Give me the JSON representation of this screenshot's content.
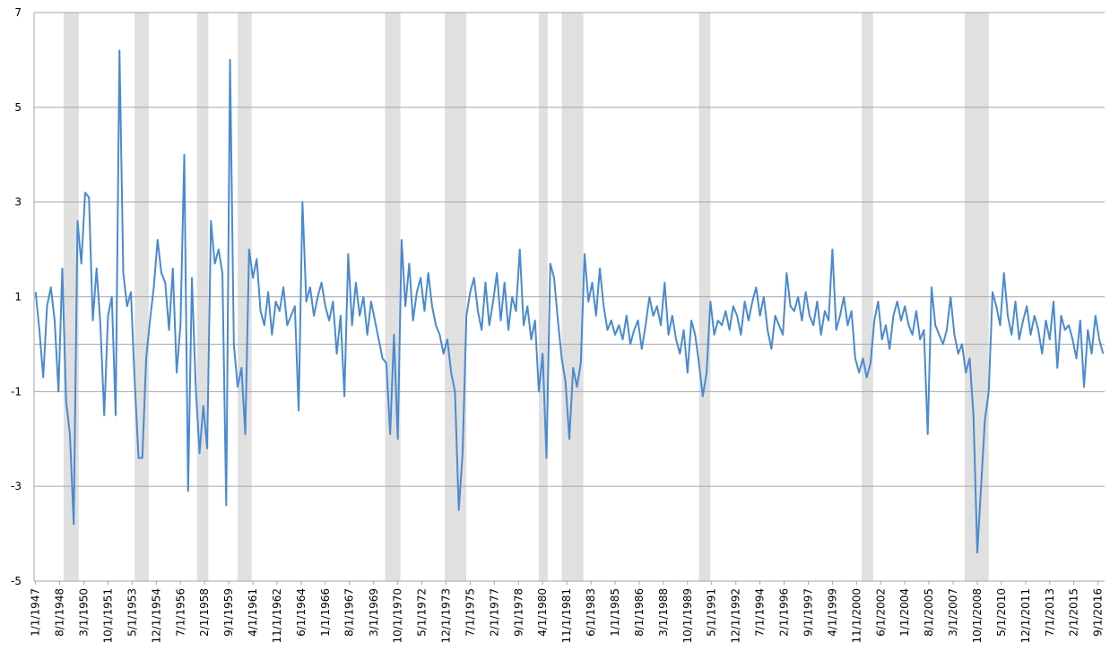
{
  "chart_data": {
    "type": "line",
    "x": [
      1947,
      1947.25,
      1947.5,
      1947.75,
      1948,
      1948.25,
      1948.5,
      1948.75,
      1949,
      1949.25,
      1949.5,
      1949.75,
      1950,
      1950.25,
      1950.5,
      1950.75,
      1951,
      1951.25,
      1951.5,
      1951.75,
      1952,
      1952.25,
      1952.5,
      1952.75,
      1953,
      1953.25,
      1953.5,
      1953.75,
      1954,
      1954.25,
      1954.5,
      1954.75,
      1955,
      1955.25,
      1955.5,
      1955.75,
      1956,
      1956.25,
      1956.5,
      1956.75,
      1957,
      1957.25,
      1957.5,
      1957.75,
      1958,
      1958.25,
      1958.5,
      1958.75,
      1959,
      1959.25,
      1959.5,
      1959.75,
      1960,
      1960.25,
      1960.5,
      1960.75,
      1961,
      1961.25,
      1961.5,
      1961.75,
      1962,
      1962.25,
      1962.5,
      1962.75,
      1963,
      1963.25,
      1963.5,
      1963.75,
      1964,
      1964.25,
      1964.5,
      1964.75,
      1965,
      1965.25,
      1965.5,
      1965.75,
      1966,
      1966.25,
      1966.5,
      1966.75,
      1967,
      1967.25,
      1967.5,
      1967.75,
      1968,
      1968.25,
      1968.5,
      1968.75,
      1969,
      1969.25,
      1969.5,
      1969.75,
      1970,
      1970.25,
      1970.5,
      1970.75,
      1971,
      1971.25,
      1971.5,
      1971.75,
      1972,
      1972.25,
      1972.5,
      1972.75,
      1973,
      1973.25,
      1973.5,
      1973.75,
      1974,
      1974.25,
      1974.5,
      1974.75,
      1975,
      1975.25,
      1975.5,
      1975.75,
      1976,
      1976.25,
      1976.5,
      1976.75,
      1977,
      1977.25,
      1977.5,
      1977.75,
      1978,
      1978.25,
      1978.5,
      1978.75,
      1979,
      1979.25,
      1979.5,
      1979.75,
      1980,
      1980.25,
      1980.5,
      1980.75,
      1981,
      1981.25,
      1981.5,
      1981.75,
      1982,
      1982.25,
      1982.5,
      1982.75,
      1983,
      1983.25,
      1983.5,
      1983.75,
      1984,
      1984.25,
      1984.5,
      1984.75,
      1985,
      1985.25,
      1985.5,
      1985.75,
      1986,
      1986.25,
      1986.5,
      1986.75,
      1987,
      1987.25,
      1987.5,
      1987.75,
      1988,
      1988.25,
      1988.5,
      1988.75,
      1989,
      1989.25,
      1989.5,
      1989.75,
      1990,
      1990.25,
      1990.5,
      1990.75,
      1991,
      1991.25,
      1991.5,
      1991.75,
      1992,
      1992.25,
      1992.5,
      1992.75,
      1993,
      1993.25,
      1993.5,
      1993.75,
      1994,
      1994.25,
      1994.5,
      1994.75,
      1995,
      1995.25,
      1995.5,
      1995.75,
      1996,
      1996.25,
      1996.5,
      1996.75,
      1997,
      1997.25,
      1997.5,
      1997.75,
      1998,
      1998.25,
      1998.5,
      1998.75,
      1999,
      1999.25,
      1999.5,
      1999.75,
      2000,
      2000.25,
      2000.5,
      2000.75,
      2001,
      2001.25,
      2001.5,
      2001.75,
      2002,
      2002.25,
      2002.5,
      2002.75,
      2003,
      2003.25,
      2003.5,
      2003.75,
      2004,
      2004.25,
      2004.5,
      2004.75,
      2005,
      2005.25,
      2005.5,
      2005.75,
      2006,
      2006.25,
      2006.5,
      2006.75,
      2007,
      2007.25,
      2007.5,
      2007.75,
      2008,
      2008.25,
      2008.5,
      2008.75,
      2009,
      2009.25,
      2009.5,
      2009.75,
      2010,
      2010.25,
      2010.5,
      2010.75,
      2011,
      2011.25,
      2011.5,
      2011.75,
      2012,
      2012.25,
      2012.5,
      2012.75,
      2013,
      2013.25,
      2013.5,
      2013.75,
      2014,
      2014.25,
      2014.5,
      2014.75,
      2015,
      2015.25,
      2015.5,
      2015.75,
      2016,
      2016.25,
      2016.5,
      2016.75,
      2017
    ],
    "series": [
      {
        "color": "#4a8ad0",
        "values": [
          1.1,
          0.3,
          -0.7,
          0.8,
          1.2,
          0.5,
          -1.0,
          1.6,
          -1.2,
          -1.9,
          -3.8,
          2.6,
          1.7,
          3.2,
          3.1,
          0.5,
          1.6,
          0.4,
          -1.5,
          0.6,
          1.0,
          -1.5,
          6.2,
          1.5,
          0.8,
          1.1,
          -0.8,
          -2.4,
          -2.4,
          -0.3,
          0.5,
          1.2,
          2.2,
          1.5,
          1.3,
          0.3,
          1.6,
          -0.6,
          0.4,
          4.0,
          -3.1,
          1.4,
          -0.9,
          -2.3,
          -1.3,
          -2.2,
          2.6,
          1.7,
          2.0,
          1.5,
          -3.4,
          6.0,
          0.0,
          -0.9,
          -0.5,
          -1.9,
          2.0,
          1.4,
          1.8,
          0.7,
          0.4,
          1.1,
          0.2,
          0.9,
          0.7,
          1.2,
          0.4,
          0.6,
          0.8,
          -1.4,
          3.0,
          0.9,
          1.2,
          0.6,
          1.0,
          1.3,
          0.8,
          0.5,
          0.9,
          -0.2,
          0.6,
          -1.1,
          1.9,
          0.4,
          1.3,
          0.6,
          1.0,
          0.2,
          0.9,
          0.5,
          0.1,
          -0.3,
          -0.4,
          -1.9,
          0.2,
          -2.0,
          2.2,
          0.8,
          1.7,
          0.5,
          1.1,
          1.4,
          0.7,
          1.5,
          0.8,
          0.4,
          0.2,
          -0.2,
          0.1,
          -0.6,
          -1.0,
          -3.5,
          -2.3,
          0.6,
          1.1,
          1.4,
          0.7,
          0.3,
          1.3,
          0.4,
          0.9,
          1.5,
          0.5,
          1.3,
          0.3,
          1.0,
          0.7,
          2.0,
          0.4,
          0.8,
          0.1,
          0.5,
          -1.0,
          -0.2,
          -2.4,
          1.7,
          1.4,
          0.5,
          -0.3,
          -0.8,
          -2.0,
          -0.5,
          -0.9,
          -0.4,
          1.9,
          0.9,
          1.3,
          0.6,
          1.6,
          0.8,
          0.3,
          0.5,
          0.2,
          0.4,
          0.1,
          0.6,
          0.0,
          0.3,
          0.5,
          -0.1,
          0.4,
          1.0,
          0.6,
          0.8,
          0.4,
          1.3,
          0.2,
          0.6,
          0.1,
          -0.2,
          0.3,
          -0.6,
          0.5,
          0.2,
          -0.4,
          -1.1,
          -0.6,
          0.9,
          0.2,
          0.5,
          0.4,
          0.7,
          0.3,
          0.8,
          0.6,
          0.2,
          0.9,
          0.5,
          0.9,
          1.2,
          0.6,
          1.0,
          0.3,
          -0.1,
          0.6,
          0.4,
          0.2,
          1.5,
          0.8,
          0.7,
          1.0,
          0.5,
          1.1,
          0.6,
          0.4,
          0.9,
          0.2,
          0.7,
          0.5,
          2.0,
          0.3,
          0.6,
          1.0,
          0.4,
          0.7,
          -0.3,
          -0.6,
          -0.3,
          -0.7,
          -0.4,
          0.5,
          0.9,
          0.1,
          0.4,
          -0.1,
          0.6,
          0.9,
          0.5,
          0.8,
          0.4,
          0.2,
          0.7,
          0.1,
          0.3,
          -1.9,
          1.2,
          0.4,
          0.2,
          0.0,
          0.3,
          1.0,
          0.2,
          -0.2,
          0.0,
          -0.6,
          -0.3,
          -1.5,
          -4.4,
          -3.0,
          -1.6,
          -1.0,
          1.1,
          0.8,
          0.4,
          1.5,
          0.6,
          0.2,
          0.9,
          0.1,
          0.5,
          0.8,
          0.2,
          0.6,
          0.3,
          -0.2,
          0.5,
          0.1,
          0.9,
          -0.5,
          0.6,
          0.3,
          0.4,
          0.1,
          -0.3,
          0.5,
          -0.9,
          0.3,
          -0.2,
          0.6,
          0.1,
          -0.2
        ]
      }
    ],
    "recessions": [
      [
        1948.83,
        1949.83
      ],
      [
        1953.5,
        1954.42
      ],
      [
        1957.58,
        1958.33
      ],
      [
        1960.25,
        1961.17
      ],
      [
        1969.92,
        1970.92
      ],
      [
        1973.83,
        1975.25
      ],
      [
        1980.0,
        1980.58
      ],
      [
        1981.5,
        1982.92
      ],
      [
        1990.5,
        1991.25
      ],
      [
        2001.17,
        2001.92
      ],
      [
        2007.92,
        2009.5
      ]
    ],
    "recession_color": "#e0e0e0",
    "xlim": [
      1946.9,
      2017.1
    ],
    "xticks": [
      {
        "value": 1947,
        "label": "1/1/1947"
      },
      {
        "value": 1948.58,
        "label": "8/1/1948"
      },
      {
        "value": 1950.17,
        "label": "3/1/1950"
      },
      {
        "value": 1951.75,
        "label": "10/1/1951"
      },
      {
        "value": 1953.33,
        "label": "5/1/1953"
      },
      {
        "value": 1954.92,
        "label": "12/1/1954"
      },
      {
        "value": 1956.5,
        "label": "7/1/1956"
      },
      {
        "value": 1958.08,
        "label": "2/1/1958"
      },
      {
        "value": 1959.67,
        "label": "9/1/1959"
      },
      {
        "value": 1961.25,
        "label": "4/1/1961"
      },
      {
        "value": 1962.83,
        "label": "11/1/1962"
      },
      {
        "value": 1964.42,
        "label": "6/1/1964"
      },
      {
        "value": 1966,
        "label": "1/1/1966"
      },
      {
        "value": 1967.58,
        "label": "8/1/1967"
      },
      {
        "value": 1969.17,
        "label": "3/1/1969"
      },
      {
        "value": 1970.75,
        "label": "10/1/1970"
      },
      {
        "value": 1972.33,
        "label": "5/1/1972"
      },
      {
        "value": 1973.92,
        "label": "12/1/1973"
      },
      {
        "value": 1975.5,
        "label": "7/1/1975"
      },
      {
        "value": 1977.08,
        "label": "2/1/1977"
      },
      {
        "value": 1978.67,
        "label": "9/1/1978"
      },
      {
        "value": 1980.25,
        "label": "4/1/1980"
      },
      {
        "value": 1981.83,
        "label": "11/1/1981"
      },
      {
        "value": 1983.42,
        "label": "6/1/1983"
      },
      {
        "value": 1985,
        "label": "1/1/1985"
      },
      {
        "value": 1986.58,
        "label": "8/1/1986"
      },
      {
        "value": 1988.17,
        "label": "3/1/1988"
      },
      {
        "value": 1989.75,
        "label": "10/1/1989"
      },
      {
        "value": 1991.33,
        "label": "5/1/1991"
      },
      {
        "value": 1992.92,
        "label": "12/1/1992"
      },
      {
        "value": 1994.5,
        "label": "7/1/1994"
      },
      {
        "value": 1996.08,
        "label": "2/1/1996"
      },
      {
        "value": 1997.67,
        "label": "9/1/1997"
      },
      {
        "value": 1999.25,
        "label": "4/1/1999"
      },
      {
        "value": 2000.83,
        "label": "11/1/2000"
      },
      {
        "value": 2002.42,
        "label": "6/1/2002"
      },
      {
        "value": 2004,
        "label": "1/1/2004"
      },
      {
        "value": 2005.58,
        "label": "8/1/2005"
      },
      {
        "value": 2007.17,
        "label": "3/1/2007"
      },
      {
        "value": 2008.75,
        "label": "10/1/2008"
      },
      {
        "value": 2010.33,
        "label": "5/1/2010"
      },
      {
        "value": 2011.92,
        "label": "12/1/2011"
      },
      {
        "value": 2013.5,
        "label": "7/1/2013"
      },
      {
        "value": 2015.08,
        "label": "2/1/2015"
      },
      {
        "value": 2016.67,
        "label": "9/1/2016"
      }
    ],
    "ylim": [
      -5,
      7
    ],
    "yticks": [
      -5,
      -3,
      -1,
      1,
      3,
      5,
      7
    ],
    "grid": true
  }
}
